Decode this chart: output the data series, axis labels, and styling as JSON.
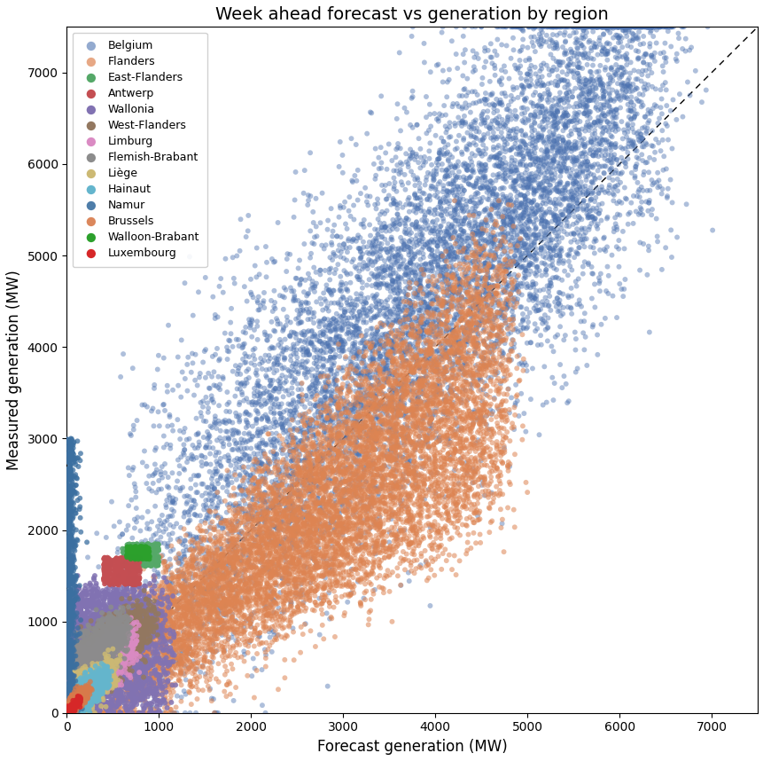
{
  "title": "Week ahead forecast vs generation by region",
  "xlabel": "Forecast generation (MW)",
  "ylabel": "Measured generation (MW)",
  "xlim": [
    0,
    7500
  ],
  "ylim": [
    0,
    7500
  ],
  "ticks": [
    0,
    1000,
    2000,
    3000,
    4000,
    5000,
    6000,
    7000
  ],
  "regions": [
    {
      "name": "Belgium",
      "color": "#4C72B0",
      "alpha": 0.45,
      "n": 9000,
      "zorder": 2
    },
    {
      "name": "Flanders",
      "color": "#DD8452",
      "alpha": 0.55,
      "n": 10000,
      "zorder": 3
    },
    {
      "name": "Wallonia",
      "color": "#8172B2",
      "alpha": 0.85,
      "n": 2500,
      "zorder": 4
    },
    {
      "name": "West-Flanders",
      "color": "#937860",
      "alpha": 0.85,
      "n": 2000,
      "zorder": 4
    },
    {
      "name": "Limburg",
      "color": "#DA8BC3",
      "alpha": 0.85,
      "n": 2000,
      "zorder": 4
    },
    {
      "name": "Flemish-Brabant",
      "color": "#8C8C8C",
      "alpha": 0.85,
      "n": 1500,
      "zorder": 4
    },
    {
      "name": "Liège",
      "color": "#CCB974",
      "alpha": 0.85,
      "n": 1200,
      "zorder": 4
    },
    {
      "name": "Hainaut",
      "color": "#64B5CD",
      "alpha": 0.85,
      "n": 1200,
      "zorder": 4
    },
    {
      "name": "Namur",
      "color": "#3B6FA0",
      "alpha": 0.75,
      "n": 800,
      "zorder": 5
    },
    {
      "name": "Brussels",
      "color": "#D87A4A",
      "alpha": 0.75,
      "n": 500,
      "zorder": 5
    },
    {
      "name": "East-Flanders",
      "color": "#55A868",
      "alpha": 0.9,
      "n": 300,
      "zorder": 6
    },
    {
      "name": "Antwerp",
      "color": "#C44E52",
      "alpha": 0.9,
      "n": 300,
      "zorder": 6
    },
    {
      "name": "Walloon-Brabant",
      "color": "#2CA02C",
      "alpha": 0.9,
      "n": 150,
      "zorder": 7
    },
    {
      "name": "Luxembourg",
      "color": "#D62728",
      "alpha": 0.9,
      "n": 150,
      "zorder": 7
    }
  ],
  "marker_size": 18,
  "legend_order": [
    "Belgium",
    "Flanders",
    "East-Flanders",
    "Antwerp",
    "Wallonia",
    "West-Flanders",
    "Limburg",
    "Flemish-Brabant",
    "Liège",
    "Hainaut",
    "Namur",
    "Brussels",
    "Walloon-Brabant",
    "Luxembourg"
  ],
  "title_fontsize": 14,
  "label_fontsize": 12
}
